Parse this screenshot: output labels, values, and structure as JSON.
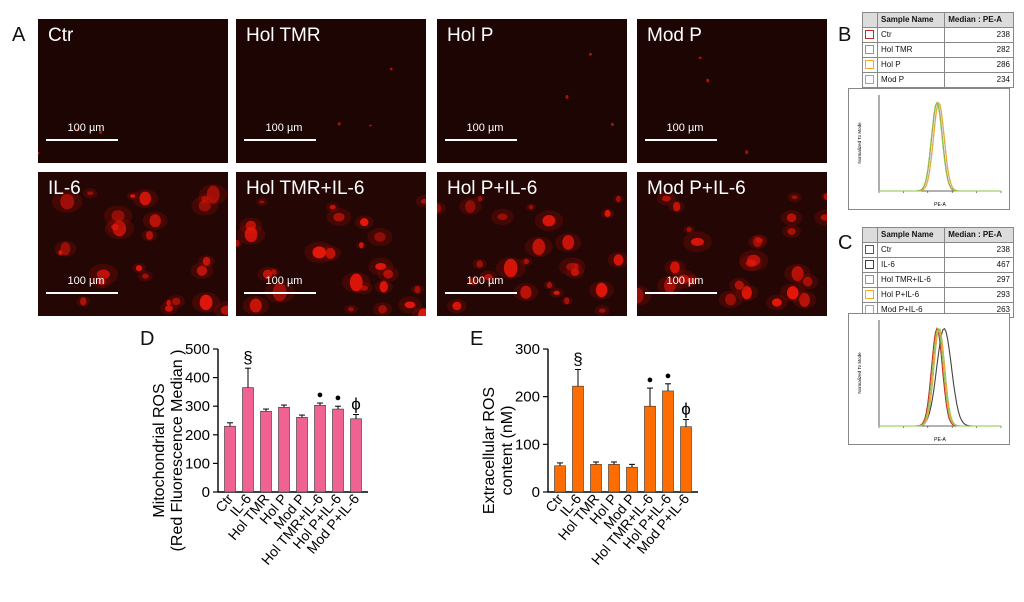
{
  "panel_letters": {
    "a": "A",
    "b": "B",
    "c": "C",
    "d": "D",
    "e": "E"
  },
  "micrographs": {
    "scale_bar": "100 µm",
    "tiles": [
      {
        "label": "Ctr"
      },
      {
        "label": "Hol TMR"
      },
      {
        "label": "Hol P"
      },
      {
        "label": "Mod P"
      },
      {
        "label": "IL-6"
      },
      {
        "label": "Hol TMR+IL-6"
      },
      {
        "label": "Hol P+IL-6"
      },
      {
        "label": "Mod P+IL-6"
      }
    ]
  },
  "flow_b": {
    "header": {
      "name": "Sample Name",
      "median": "Median : PE-A"
    },
    "rows": [
      {
        "name": "Ctr",
        "median": "238",
        "color": "#c62828"
      },
      {
        "name": "Hol TMR",
        "median": "282",
        "color": "#29b6f6"
      },
      {
        "name": "Hol P",
        "median": "286",
        "color": "#f9a825"
      },
      {
        "name": "Mod P",
        "median": "234",
        "color": "#8bc34a"
      }
    ],
    "ylabel": "Normalized To Mode",
    "xlabel": "PE-A"
  },
  "flow_c": {
    "header": {
      "name": "Sample Name",
      "median": "Median : PE-A"
    },
    "rows": [
      {
        "name": "Ctr",
        "median": "238",
        "color": "#c62828"
      },
      {
        "name": "IL-6",
        "median": "467",
        "color": "#424242"
      },
      {
        "name": "Hol TMR+IL-6",
        "median": "297",
        "color": "#29b6f6"
      },
      {
        "name": "Hol P+IL-6",
        "median": "293",
        "color": "#f9a825"
      },
      {
        "name": "Mod P+IL-6",
        "median": "263",
        "color": "#8bc34a"
      }
    ],
    "ylabel": "Normalized To Mode",
    "xlabel": "PE-A"
  },
  "chart_data": [
    {
      "type": "bar",
      "panel": "D",
      "categories": [
        "Ctr",
        "IL-6",
        "Hol TMR",
        "Hol P",
        "Mod P",
        "Hol TMR+IL-6",
        "Hol P+IL-6",
        "Mod P+IL-6"
      ],
      "values": [
        230,
        365,
        282,
        296,
        261,
        303,
        290,
        256
      ],
      "errors": [
        12,
        68,
        8,
        8,
        8,
        8,
        10,
        15
      ],
      "annotations": [
        "",
        "§",
        "",
        "",
        "",
        "●",
        "●",
        "ϕ"
      ],
      "ylabel_lines": [
        "Mitochondrial ROS",
        "(Red Fluorescence Median )"
      ],
      "ylim": [
        0,
        500
      ],
      "yticks": [
        0,
        100,
        200,
        300,
        400,
        500
      ],
      "bar_color": "#f06292",
      "grid": false
    },
    {
      "type": "bar",
      "panel": "E",
      "categories": [
        "Ctr",
        "IL-6",
        "Hol TMR",
        "Hol P",
        "Mod P",
        "Hol TMR+IL-6",
        "Hol P+IL-6",
        "Mod P+IL-6"
      ],
      "values": [
        55,
        222,
        58,
        58,
        52,
        180,
        212,
        137
      ],
      "errors": [
        6,
        35,
        5,
        5,
        6,
        38,
        15,
        15
      ],
      "annotations": [
        "",
        "§",
        "",
        "",
        "",
        "●",
        "●",
        "ϕ"
      ],
      "ylabel_lines": [
        "Extracellular ROS",
        "content (nM)"
      ],
      "ylim": [
        0,
        300
      ],
      "yticks": [
        0,
        100,
        200,
        300
      ],
      "bar_color": "#ff6d00",
      "grid": false
    }
  ]
}
